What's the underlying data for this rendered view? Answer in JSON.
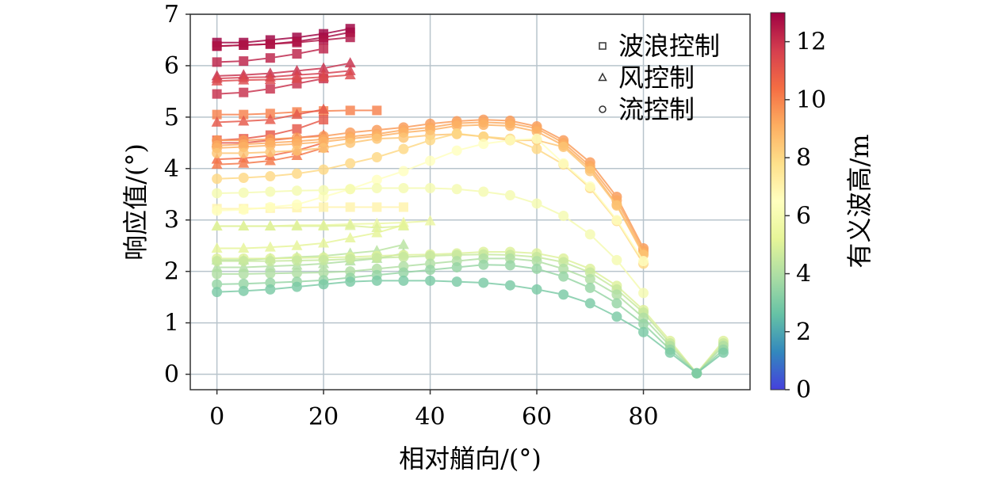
{
  "chart_data": {
    "type": "scatter",
    "xlabel": "相对艏向/(°)",
    "ylabel": "响应值/(°)",
    "xlim": [
      -5,
      100
    ],
    "ylim": [
      -0.3,
      7
    ],
    "xticks": [
      0,
      20,
      40,
      60,
      80
    ],
    "yticks": [
      0,
      1,
      2,
      3,
      4,
      5,
      6,
      7
    ],
    "grid": true,
    "legend_position": "top-right",
    "legend": [
      {
        "marker": "square",
        "label": "波浪控制"
      },
      {
        "marker": "triangle",
        "label": "风控制"
      },
      {
        "marker": "circle",
        "label": "流控制"
      }
    ],
    "colorbar": {
      "label": "有义波高/m",
      "min": 0,
      "max": 13,
      "ticks": [
        0,
        2,
        4,
        6,
        8,
        10,
        12
      ],
      "colormap": "Spectral_r"
    },
    "series": [
      {
        "name": "wave_hs13a",
        "marker": "square",
        "hs": 13,
        "x": [
          0,
          5,
          10,
          15,
          20,
          25
        ],
        "y": [
          6.45,
          6.45,
          6.5,
          6.55,
          6.62,
          6.72
        ]
      },
      {
        "name": "wave_hs12.8",
        "marker": "square",
        "hs": 12.8,
        "x": [
          0,
          5,
          10,
          15,
          20,
          25
        ],
        "y": [
          6.38,
          6.4,
          6.42,
          6.47,
          6.55,
          6.65
        ]
      },
      {
        "name": "wave_hs12.6",
        "marker": "square",
        "hs": 12.6,
        "x": [
          0,
          5,
          10,
          15,
          20,
          25
        ],
        "y": [
          6.38,
          6.4,
          6.42,
          6.45,
          6.5,
          6.55
        ]
      },
      {
        "name": "wave_hs12.3",
        "marker": "square",
        "hs": 12.3,
        "x": [
          0,
          5,
          10,
          15,
          20
        ],
        "y": [
          6.07,
          6.09,
          6.15,
          6.23,
          6.33
        ]
      },
      {
        "name": "wave_hs12",
        "marker": "square",
        "hs": 12,
        "x": [
          0,
          5,
          10,
          15,
          20
        ],
        "y": [
          5.45,
          5.48,
          5.55,
          5.65,
          5.75
        ]
      },
      {
        "name": "wave_hs10",
        "marker": "square",
        "hs": 10,
        "x": [
          0,
          5,
          10,
          15,
          20,
          25,
          30
        ],
        "y": [
          5.05,
          5.05,
          5.07,
          5.1,
          5.12,
          5.13,
          5.13
        ]
      },
      {
        "name": "wave_hs11",
        "marker": "square",
        "hs": 11,
        "x": [
          0,
          5,
          10,
          15,
          20
        ],
        "y": [
          4.55,
          4.58,
          4.65,
          4.77,
          4.95
        ]
      },
      {
        "name": "wave_hs7",
        "marker": "square",
        "hs": 7,
        "x": [
          0,
          5,
          10,
          15,
          20,
          25,
          30,
          35
        ],
        "y": [
          3.22,
          3.22,
          3.23,
          3.24,
          3.25,
          3.25,
          3.25,
          3.25
        ]
      },
      {
        "name": "wind_hs12",
        "marker": "triangle",
        "hs": 12,
        "x": [
          0,
          5,
          10,
          15,
          20,
          25
        ],
        "y": [
          5.8,
          5.82,
          5.85,
          5.9,
          5.95,
          6.05
        ]
      },
      {
        "name": "wind_hs11.7",
        "marker": "triangle",
        "hs": 11.7,
        "x": [
          0,
          5,
          10,
          15,
          20,
          25
        ],
        "y": [
          5.75,
          5.77,
          5.78,
          5.82,
          5.85,
          5.9
        ]
      },
      {
        "name": "wind_hs11.4",
        "marker": "triangle",
        "hs": 11.4,
        "x": [
          0,
          5,
          10,
          15,
          20,
          25
        ],
        "y": [
          5.7,
          5.72,
          5.73,
          5.75,
          5.78,
          5.82
        ]
      },
      {
        "name": "wind_hs11",
        "marker": "triangle",
        "hs": 11,
        "x": [
          0,
          5,
          10,
          15,
          20
        ],
        "y": [
          4.9,
          4.92,
          4.95,
          5.05,
          5.15
        ]
      },
      {
        "name": "wind_hs11b",
        "marker": "triangle",
        "hs": 11,
        "x": [
          0,
          5,
          10,
          15,
          20
        ],
        "y": [
          4.5,
          4.5,
          4.55,
          4.6,
          4.65
        ]
      },
      {
        "name": "wind_hs10.5",
        "marker": "triangle",
        "hs": 10.5,
        "x": [
          0,
          5,
          10,
          15,
          20
        ],
        "y": [
          4.18,
          4.2,
          4.25,
          4.35,
          4.5
        ]
      },
      {
        "name": "wind_hs10.2",
        "marker": "triangle",
        "hs": 10.2,
        "x": [
          0,
          5,
          10,
          15,
          20
        ],
        "y": [
          4.08,
          4.1,
          4.15,
          4.25,
          4.4
        ]
      },
      {
        "name": "wind_hs5.5",
        "marker": "triangle",
        "hs": 5.5,
        "x": [
          0,
          5,
          10,
          15,
          20,
          25,
          30,
          35,
          40
        ],
        "y": [
          2.88,
          2.88,
          2.88,
          2.9,
          2.9,
          2.92,
          2.93,
          2.95,
          2.98
        ]
      },
      {
        "name": "wind_hs5",
        "marker": "triangle",
        "hs": 5,
        "x": [
          0,
          5,
          10,
          15,
          20,
          25,
          30,
          35
        ],
        "y": [
          2.88,
          2.88,
          2.88,
          2.88,
          2.88,
          2.89,
          2.85,
          2.88
        ]
      },
      {
        "name": "wind_hs5.2",
        "marker": "triangle",
        "hs": 5.2,
        "x": [
          0,
          5,
          10,
          15,
          20,
          25,
          30,
          35
        ],
        "y": [
          2.45,
          2.45,
          2.47,
          2.5,
          2.55,
          2.65,
          2.75,
          2.9
        ]
      },
      {
        "name": "wind_hs4.2",
        "marker": "triangle",
        "hs": 4.2,
        "x": [
          0,
          5,
          10,
          15,
          20,
          25,
          30,
          35
        ],
        "y": [
          2.22,
          2.22,
          2.25,
          2.28,
          2.3,
          2.35,
          2.4,
          2.52
        ]
      },
      {
        "name": "wind_hs4",
        "marker": "triangle",
        "hs": 4,
        "x": [
          0,
          5,
          10,
          15,
          20,
          25,
          30,
          35
        ],
        "y": [
          2.08,
          2.08,
          2.1,
          2.12,
          2.15,
          2.2,
          2.25,
          2.35
        ]
      },
      {
        "name": "current_hs9.5",
        "marker": "circle",
        "hs": 9.5,
        "x": [
          0,
          5,
          10,
          15,
          20,
          25,
          30,
          35,
          40,
          45,
          50,
          55,
          60,
          65,
          70,
          75,
          80
        ],
        "y": [
          4.55,
          4.55,
          4.57,
          4.6,
          4.63,
          4.7,
          4.75,
          4.8,
          4.87,
          4.92,
          4.95,
          4.93,
          4.82,
          4.55,
          4.12,
          3.45,
          2.45
        ]
      },
      {
        "name": "current_hs9.2",
        "marker": "circle",
        "hs": 9.2,
        "x": [
          0,
          5,
          10,
          15,
          20,
          25,
          30,
          35,
          40,
          45,
          50,
          55,
          60,
          65,
          70,
          75,
          80
        ],
        "y": [
          4.45,
          4.47,
          4.5,
          4.53,
          4.57,
          4.62,
          4.67,
          4.75,
          4.8,
          4.88,
          4.9,
          4.88,
          4.78,
          4.5,
          4.05,
          3.38,
          2.4
        ]
      },
      {
        "name": "current_hs9",
        "marker": "circle",
        "hs": 9,
        "x": [
          0,
          5,
          10,
          15,
          20,
          25,
          30,
          35,
          40,
          45,
          50,
          55,
          60,
          65,
          70,
          75,
          80
        ],
        "y": [
          4.4,
          4.42,
          4.45,
          4.48,
          4.52,
          4.58,
          4.63,
          4.7,
          4.75,
          4.83,
          4.85,
          4.83,
          4.72,
          4.45,
          4.0,
          3.3,
          2.35
        ]
      },
      {
        "name": "current_hs8.5",
        "marker": "circle",
        "hs": 8.5,
        "x": [
          0,
          5,
          10,
          15,
          20,
          25,
          30,
          35,
          40,
          45,
          50,
          55,
          60,
          65,
          70,
          75,
          80
        ],
        "y": [
          4.3,
          4.3,
          4.32,
          4.35,
          4.4,
          4.5,
          4.58,
          4.6,
          4.65,
          4.67,
          4.62,
          4.55,
          4.55,
          4.42,
          3.95,
          3.28,
          2.32
        ]
      },
      {
        "name": "current_hs8",
        "marker": "circle",
        "hs": 8,
        "x": [
          0,
          5,
          10,
          15,
          20,
          25,
          30,
          35,
          40,
          45,
          50,
          55,
          60,
          65,
          70,
          75,
          80
        ],
        "y": [
          3.8,
          3.82,
          3.85,
          3.9,
          3.98,
          4.1,
          4.22,
          4.38,
          4.55,
          4.68,
          4.62,
          4.58,
          4.38,
          4.08,
          3.62,
          2.98,
          2.15
        ]
      },
      {
        "name": "current_hs6.5",
        "marker": "circle",
        "hs": 6.5,
        "x": [
          0,
          5,
          10,
          15,
          20,
          25,
          30,
          35,
          40,
          45,
          50,
          55,
          60,
          65,
          70,
          75,
          80
        ],
        "y": [
          3.18,
          3.2,
          3.25,
          3.3,
          3.45,
          3.6,
          3.78,
          3.95,
          4.15,
          4.35,
          4.48,
          4.55,
          4.58,
          4.1,
          3.65,
          3.0,
          2.2
        ]
      },
      {
        "name": "current_hs6",
        "marker": "circle",
        "hs": 6,
        "x": [
          0,
          5,
          10,
          15,
          20,
          25,
          30,
          35,
          40,
          45,
          50,
          55,
          60,
          65,
          70,
          75,
          80
        ],
        "y": [
          3.52,
          3.53,
          3.55,
          3.57,
          3.58,
          3.6,
          3.62,
          3.62,
          3.62,
          3.6,
          3.55,
          3.48,
          3.32,
          3.08,
          2.72,
          2.22,
          1.58
        ]
      },
      {
        "name": "current_hs5",
        "marker": "circle",
        "hs": 5,
        "x": [
          0,
          5,
          10,
          15,
          20,
          25,
          30,
          35,
          40,
          45,
          50,
          55,
          60,
          65,
          70,
          75,
          80,
          85,
          90,
          95
        ],
        "y": [
          2.25,
          2.25,
          2.25,
          2.26,
          2.27,
          2.28,
          2.3,
          2.32,
          2.33,
          2.35,
          2.38,
          2.38,
          2.35,
          2.25,
          2.05,
          1.72,
          1.25,
          0.65,
          0.02,
          0.65
        ]
      },
      {
        "name": "current_hs4.5",
        "marker": "circle",
        "hs": 4.5,
        "x": [
          0,
          5,
          10,
          15,
          20,
          25,
          30,
          35,
          40,
          45,
          50,
          55,
          60,
          65,
          70,
          75,
          80,
          85,
          90,
          95
        ],
        "y": [
          2.2,
          2.2,
          2.2,
          2.21,
          2.22,
          2.24,
          2.26,
          2.28,
          2.3,
          2.32,
          2.33,
          2.32,
          2.28,
          2.18,
          1.98,
          1.65,
          1.2,
          0.6,
          0.02,
          0.6
        ]
      },
      {
        "name": "current_hs4",
        "marker": "circle",
        "hs": 4,
        "x": [
          0,
          5,
          10,
          15,
          20,
          25,
          30,
          35,
          40,
          45,
          50,
          55,
          60,
          65,
          70,
          75,
          80,
          85,
          90,
          95
        ],
        "y": [
          1.95,
          1.95,
          1.96,
          1.97,
          1.98,
          2.0,
          2.05,
          2.1,
          2.15,
          2.2,
          2.25,
          2.25,
          2.2,
          2.05,
          1.85,
          1.55,
          1.1,
          0.55,
          0.02,
          0.55
        ]
      },
      {
        "name": "current_hs3.5",
        "marker": "circle",
        "hs": 3.5,
        "x": [
          0,
          5,
          10,
          15,
          20,
          25,
          30,
          35,
          40,
          45,
          50,
          55,
          60,
          65,
          70,
          75,
          80,
          85,
          90,
          95
        ],
        "y": [
          1.75,
          1.76,
          1.78,
          1.8,
          1.83,
          1.88,
          1.93,
          1.98,
          2.03,
          2.08,
          2.13,
          2.12,
          2.05,
          1.9,
          1.68,
          1.38,
          0.98,
          0.48,
          0.02,
          0.48
        ]
      },
      {
        "name": "current_hs3",
        "marker": "circle",
        "hs": 3,
        "x": [
          0,
          5,
          10,
          15,
          20,
          25,
          30,
          35,
          40,
          45,
          50,
          55,
          60,
          65,
          70,
          75,
          80,
          85,
          90,
          95
        ],
        "y": [
          1.6,
          1.62,
          1.65,
          1.7,
          1.75,
          1.8,
          1.82,
          1.82,
          1.82,
          1.8,
          1.78,
          1.73,
          1.65,
          1.55,
          1.38,
          1.12,
          0.82,
          0.42,
          0.02,
          0.42
        ]
      }
    ]
  }
}
